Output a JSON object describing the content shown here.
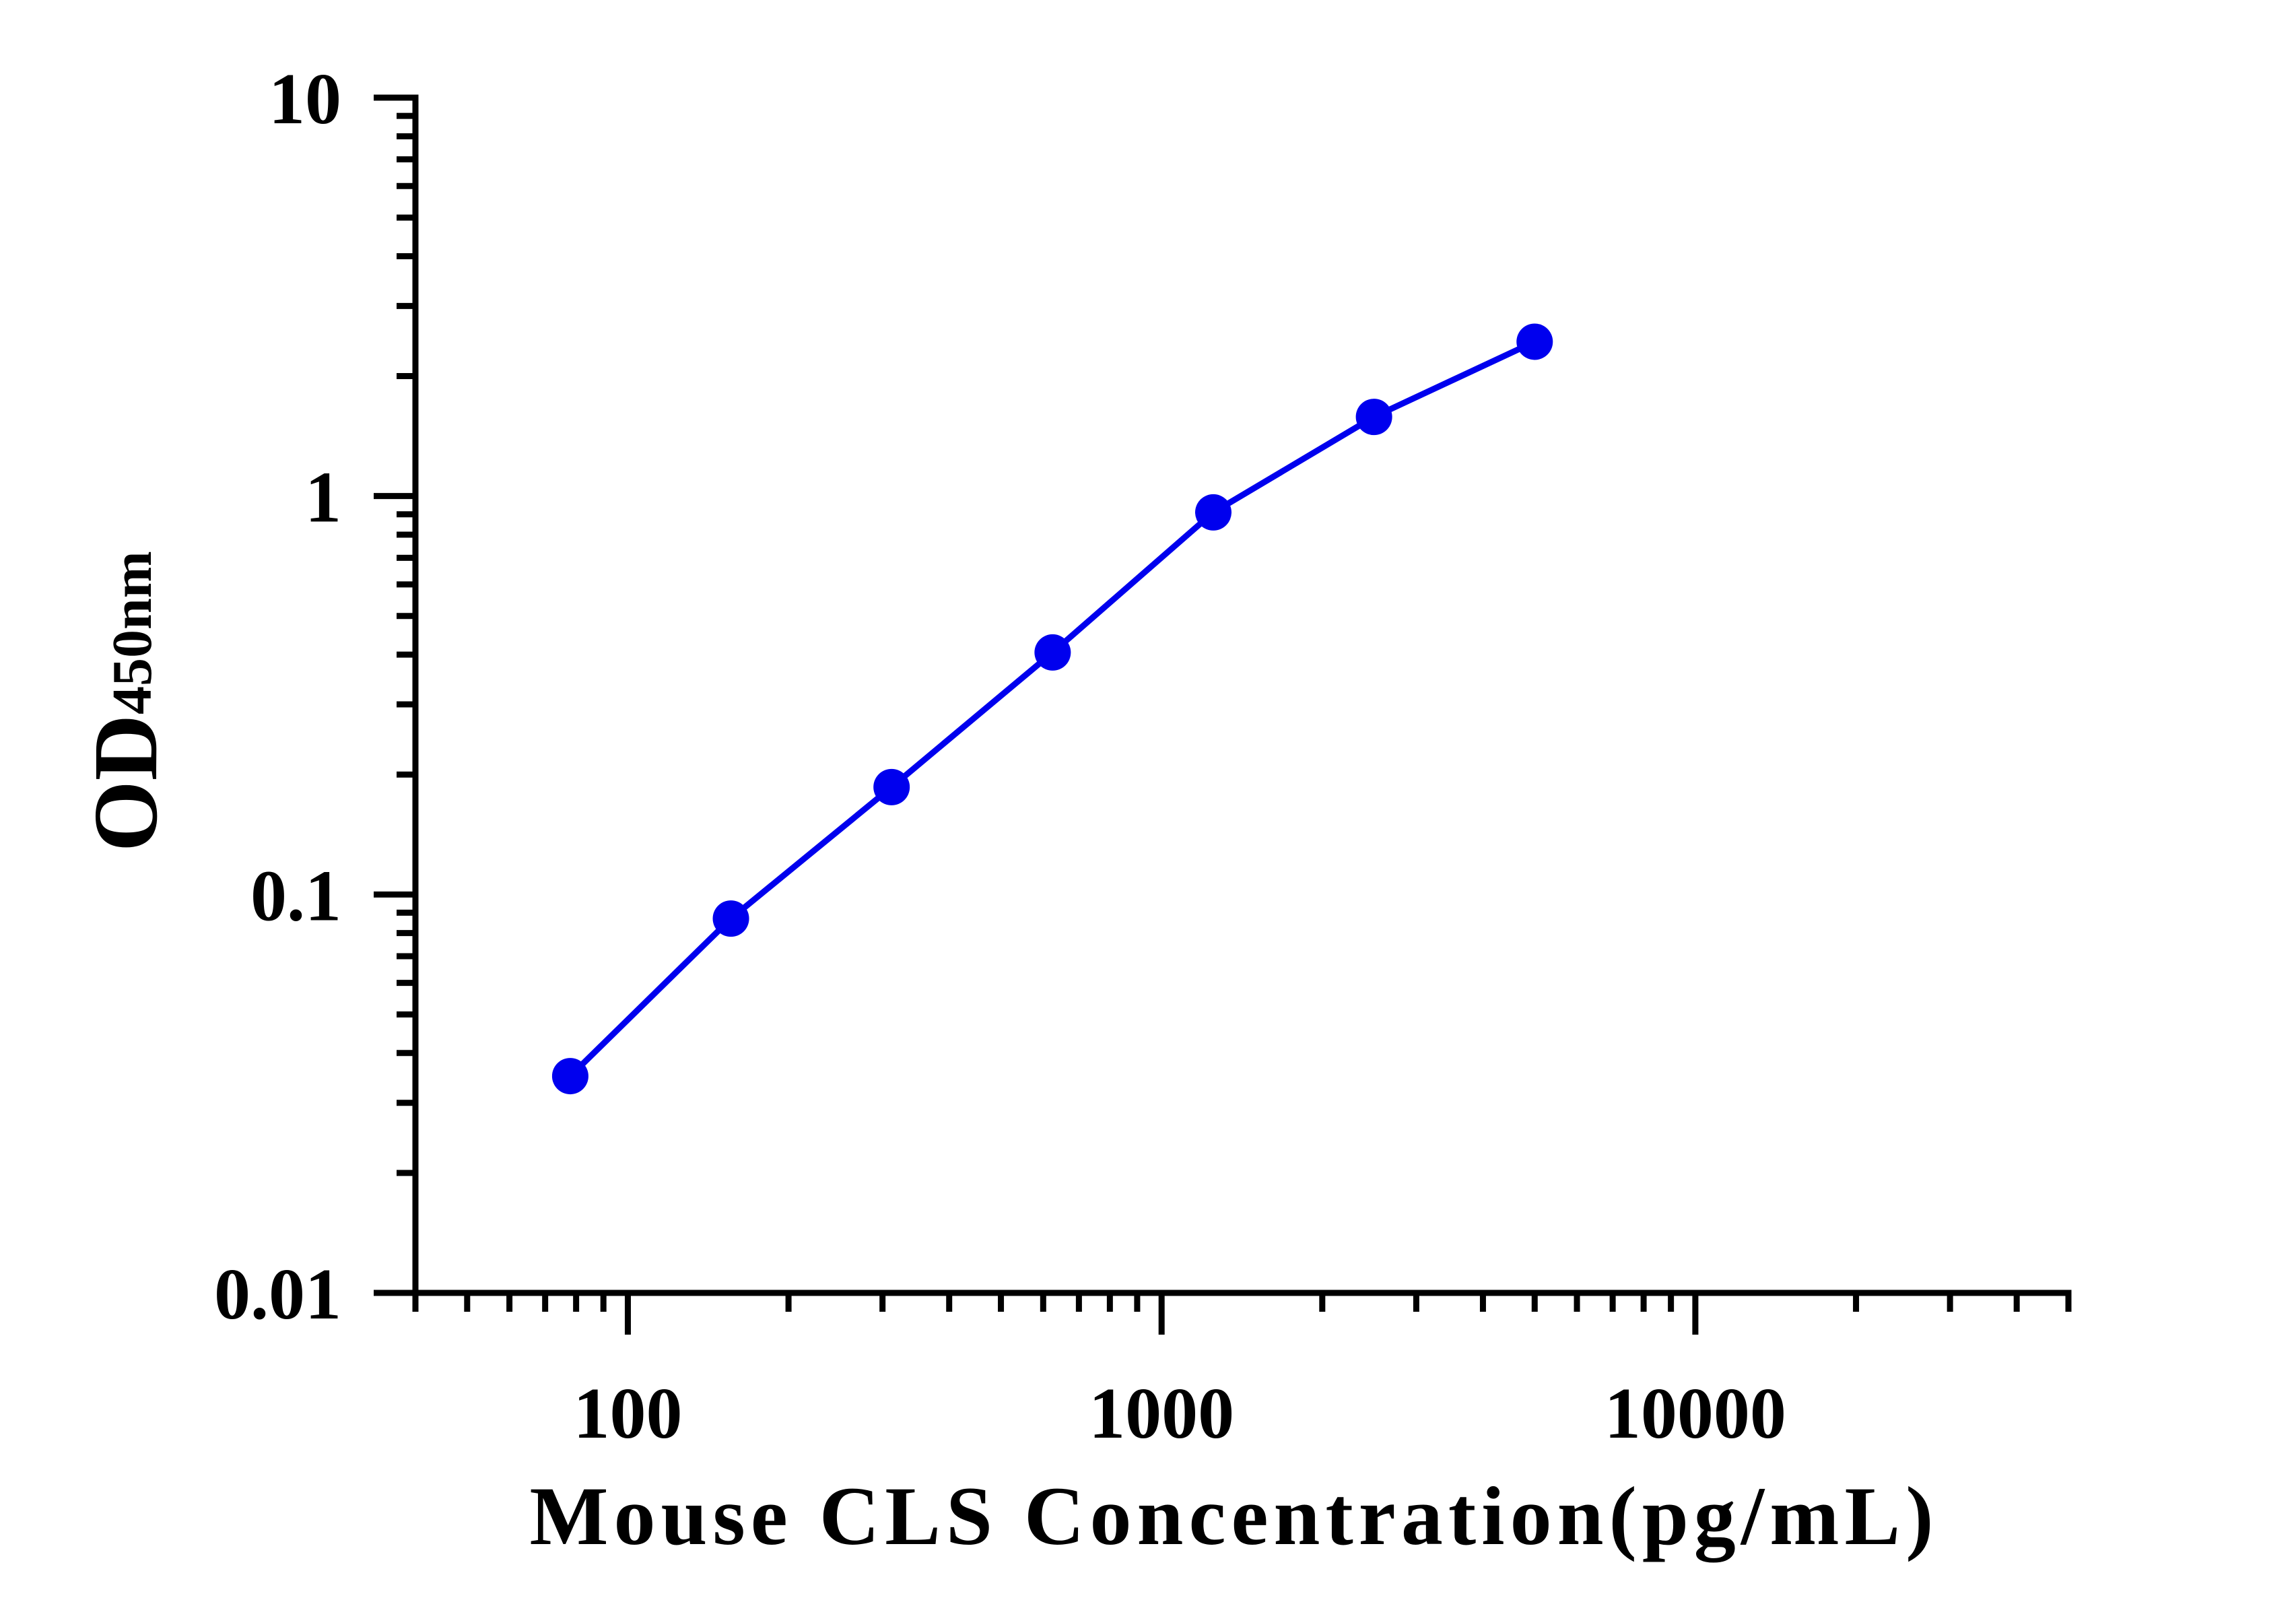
{
  "chart_data": {
    "type": "line",
    "xlabel": "Mouse CLS Concentration(pg/mL)",
    "ylabel": "OD",
    "ylabel_subscript": "450nm",
    "x_scale": "log",
    "y_scale": "log",
    "xlim": [
      40,
      50000
    ],
    "ylim": [
      0.01,
      10
    ],
    "x_ticks": [
      100,
      1000,
      10000
    ],
    "x_tick_labels": [
      "100",
      "1000",
      "10000"
    ],
    "y_ticks": [
      0.01,
      0.1,
      1,
      10
    ],
    "y_tick_labels": [
      "0.01",
      "0.1",
      "1",
      "10"
    ],
    "grid": false,
    "colors": {
      "series": "#0000ee",
      "axis": "#000000"
    },
    "series": [
      {
        "x": [
          78,
          156,
          312,
          625,
          1250,
          2500,
          5000
        ],
        "y": [
          0.035,
          0.087,
          0.186,
          0.405,
          0.91,
          1.58,
          2.44
        ]
      }
    ]
  }
}
